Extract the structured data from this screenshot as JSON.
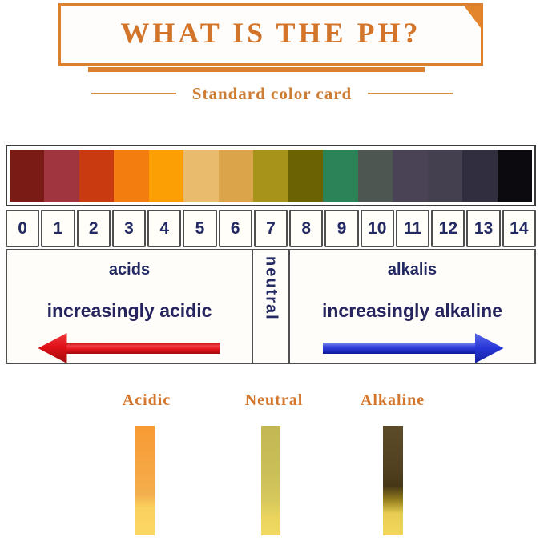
{
  "header": {
    "title": "WHAT IS THE PH?",
    "subtitle": "Standard color card"
  },
  "scale": {
    "cells": [
      {
        "ph": "0",
        "color": "#7b1b16"
      },
      {
        "ph": "1",
        "color": "#a03540"
      },
      {
        "ph": "2",
        "color": "#c93a10"
      },
      {
        "ph": "3",
        "color": "#f37d0e"
      },
      {
        "ph": "4",
        "color": "#fb9f04"
      },
      {
        "ph": "5",
        "color": "#e9bb6c"
      },
      {
        "ph": "6",
        "color": "#dba44a"
      },
      {
        "ph": "7",
        "color": "#a8931a"
      },
      {
        "ph": "8",
        "color": "#6b6302"
      },
      {
        "ph": "9",
        "color": "#2b8457"
      },
      {
        "ph": "10",
        "color": "#4d5650"
      },
      {
        "ph": "11",
        "color": "#4a4356"
      },
      {
        "ph": "12",
        "color": "#454050"
      },
      {
        "ph": "13",
        "color": "#312e40"
      },
      {
        "ph": "14",
        "color": "#0c0a0e"
      }
    ]
  },
  "sections": {
    "acids": {
      "label": "acids",
      "sublabel": "increasingly acidic",
      "arrow_color": "#e01117",
      "arrow_direction": "left"
    },
    "neutral": {
      "label": "neutral"
    },
    "alkalis": {
      "label": "alkalis",
      "sublabel": "increasingly alkaline",
      "arrow_color": "#2636d6",
      "arrow_direction": "right"
    }
  },
  "strips": [
    {
      "label": "Acidic",
      "stops": [
        "#f79b33 0%",
        "#f6a845 45%",
        "#f3ae4d 62%",
        "#fbd05e 75%",
        "#fcd763 100%"
      ]
    },
    {
      "label": "Neutral",
      "stops": [
        "#c3b754 0%",
        "#cbbf58 45%",
        "#d7c85d 68%",
        "#ecd55e 85%",
        "#f0da62 100%"
      ]
    },
    {
      "label": "Alkaline",
      "stops": [
        "#5c4b28 0%",
        "#524120 38%",
        "#463716 55%",
        "#97801f 68%",
        "#e7cd52 80%",
        "#f2d75c 100%"
      ]
    }
  ],
  "colors": {
    "accent_orange": "#d9812e",
    "title_orange": "#d2752a",
    "navy_text": "#232a63",
    "border_gray": "#4f4f4f"
  }
}
